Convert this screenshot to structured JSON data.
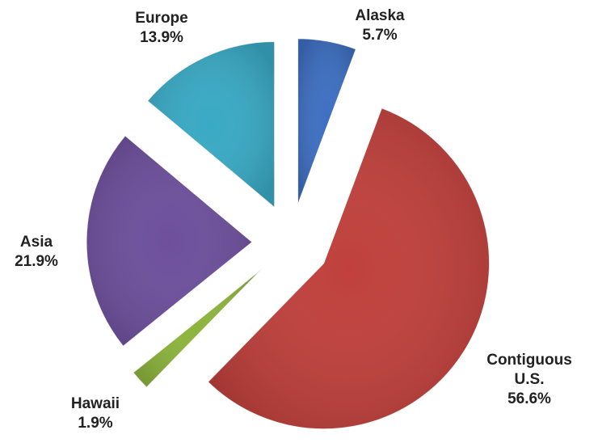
{
  "chart_data": {
    "type": "pie",
    "categories": [
      "Alaska",
      "Contiguous U.S.",
      "Hawaii",
      "Asia",
      "Europe"
    ],
    "values": [
      5.7,
      56.6,
      1.9,
      21.9,
      13.9
    ],
    "value_labels": [
      "5.7%",
      "56.6%",
      "1.9%",
      "21.9%",
      "13.9%"
    ],
    "colors": [
      "#3d6fc1",
      "#c0403c",
      "#8db43d",
      "#6d4f9c",
      "#39a9c4"
    ]
  }
}
